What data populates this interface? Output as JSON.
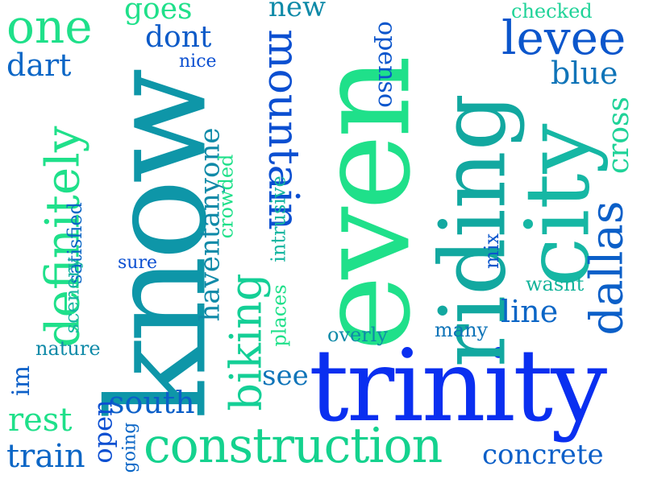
{
  "words": [
    {
      "text": "trinity",
      "color": "#0a2ff0",
      "rotate": 0
    },
    {
      "text": "know",
      "color": "#0e96a8",
      "rotate": -90
    },
    {
      "text": "even",
      "color": "#1fe08a",
      "rotate": -90
    },
    {
      "text": "riding",
      "color": "#12a8a0",
      "rotate": -90
    },
    {
      "text": "city",
      "color": "#16b7a4",
      "rotate": -90
    },
    {
      "text": "construction",
      "color": "#14d28e",
      "rotate": 0
    },
    {
      "text": "mountain",
      "color": "#0b4fd1",
      "rotate": 90
    },
    {
      "text": "definitely",
      "color": "#1fe08a",
      "rotate": -90
    },
    {
      "text": "biking",
      "color": "#14cf96",
      "rotate": -90
    },
    {
      "text": "dallas",
      "color": "#0b5fc8",
      "rotate": -90
    },
    {
      "text": "levee",
      "color": "#0b56cc",
      "rotate": 0
    },
    {
      "text": "one",
      "color": "#1fe08a",
      "rotate": 0
    },
    {
      "text": "haventanyone",
      "color": "#0f8aa8",
      "rotate": -90
    },
    {
      "text": "south",
      "color": "#0b5fc8",
      "rotate": 0
    },
    {
      "text": "train",
      "color": "#0b66c6",
      "rotate": 0
    },
    {
      "text": "rest",
      "color": "#1fe08a",
      "rotate": 0
    },
    {
      "text": "concrete",
      "color": "#0b5fc8",
      "rotate": 0
    },
    {
      "text": "line",
      "color": "#0b66c6",
      "rotate": 0
    },
    {
      "text": "dart",
      "color": "#0b66c6",
      "rotate": 0
    },
    {
      "text": "blue",
      "color": "#0f74b8",
      "rotate": 0
    },
    {
      "text": "cross",
      "color": "#1fd398",
      "rotate": -90
    },
    {
      "text": "opensо",
      "color": "#0b56cc",
      "rotate": 90
    },
    {
      "text": "goes",
      "color": "#1fe08a",
      "rotate": 0
    },
    {
      "text": "dont",
      "color": "#0b5ac8",
      "rotate": 0
    },
    {
      "text": "new",
      "color": "#0f8aa8",
      "rotate": 0
    },
    {
      "text": "open",
      "color": "#0b4fd1",
      "rotate": -90
    },
    {
      "text": "see",
      "color": "#0f74b8",
      "rotate": 0
    },
    {
      "text": "im",
      "color": "#0b5fc8",
      "rotate": -90
    },
    {
      "text": "nature",
      "color": "#0f8aa8",
      "rotate": 0
    },
    {
      "text": "satisfied",
      "color": "#0b66c6",
      "rotate": -90
    },
    {
      "text": "scenery",
      "color": "#14b5a0",
      "rotate": -90
    },
    {
      "text": "crowded",
      "color": "#1fe08a",
      "rotate": -90
    },
    {
      "text": "intrusive",
      "color": "#14b5a0",
      "rotate": -90
    },
    {
      "text": "places",
      "color": "#1fe08a",
      "rotate": -90
    },
    {
      "text": "overly",
      "color": "#0f8aa8",
      "rotate": 0
    },
    {
      "text": "many",
      "color": "#0f74b8",
      "rotate": 0
    },
    {
      "text": "wasnt",
      "color": "#12b39a",
      "rotate": 0
    },
    {
      "text": "mix",
      "color": "#0b56cc",
      "rotate": -90
    },
    {
      "text": "sure",
      "color": "#0b4fd1",
      "rotate": 0
    },
    {
      "text": "nice",
      "color": "#0b4fd1",
      "rotate": 0
    },
    {
      "text": "checked",
      "color": "#1fd398",
      "rotate": 0
    },
    {
      "text": "going",
      "color": "#0b66c6",
      "rotate": -90
    }
  ]
}
